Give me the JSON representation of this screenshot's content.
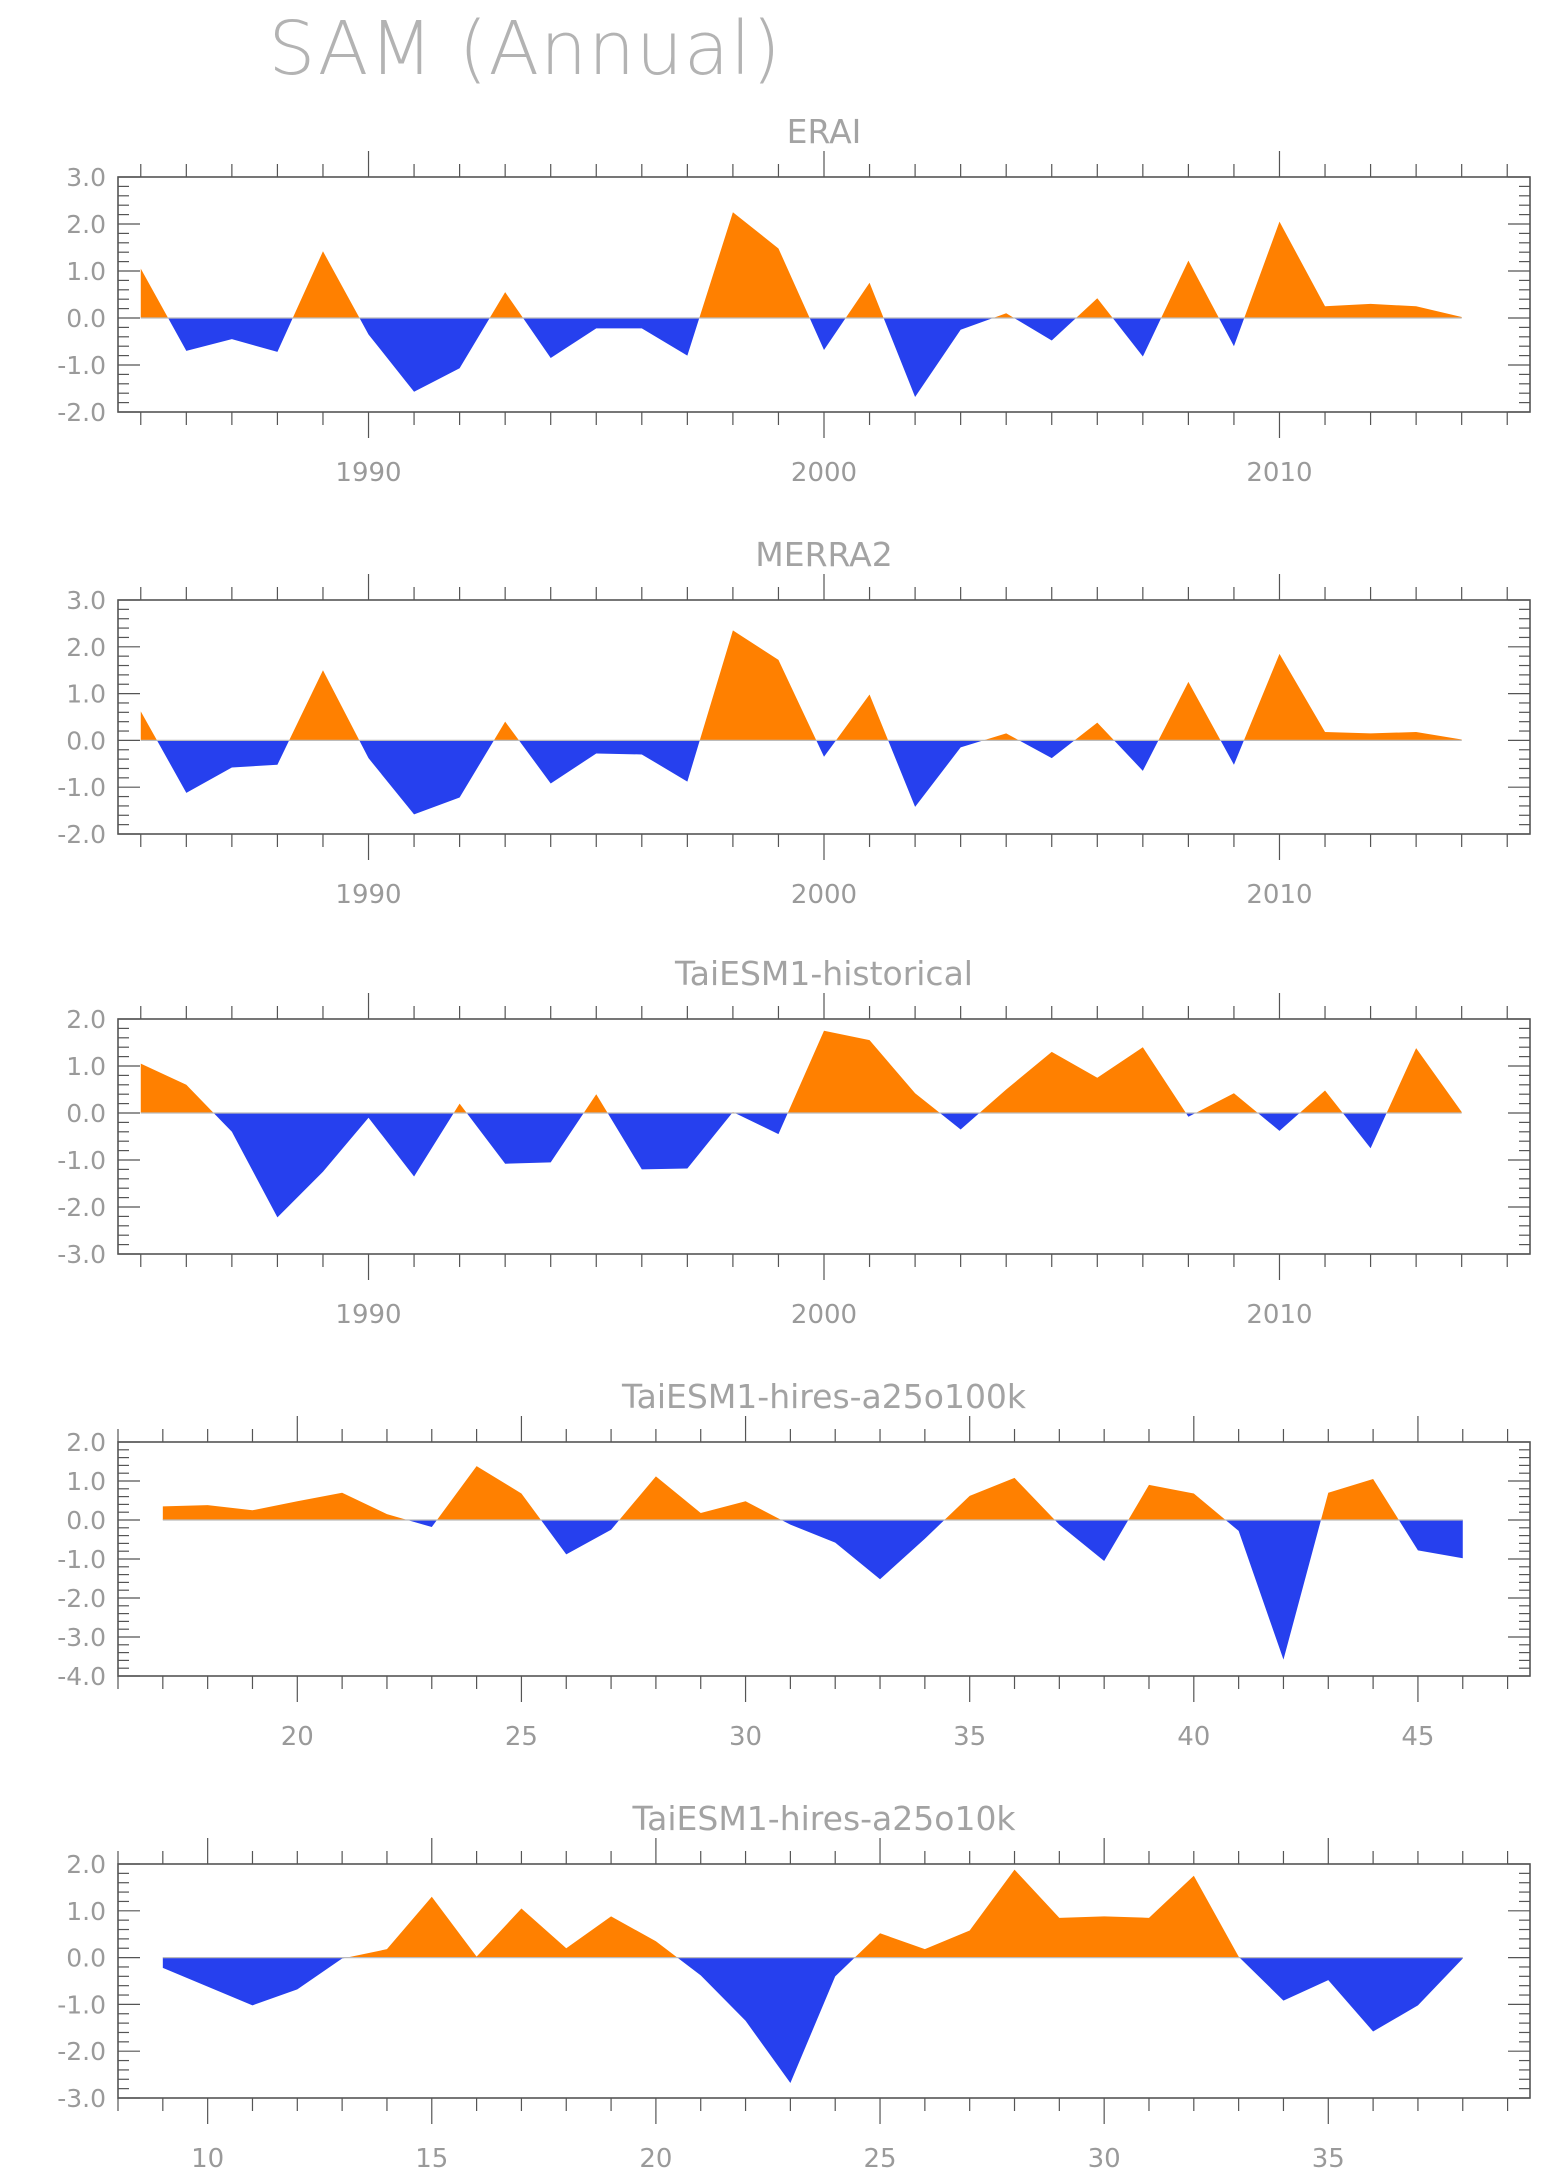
{
  "page_title": "SAM (Annual)",
  "colors": {
    "positive": "#ff8000",
    "negative": "#2640ee",
    "axis": "#555555",
    "text": "#a0a0a0"
  },
  "chart_data": [
    {
      "type": "area",
      "title": "ERAI",
      "x": [
        1985,
        1986,
        1987,
        1988,
        1989,
        1990,
        1991,
        1992,
        1993,
        1994,
        1995,
        1996,
        1997,
        1998,
        1999,
        2000,
        2001,
        2002,
        2003,
        2004,
        2005,
        2006,
        2007,
        2008,
        2009,
        2010,
        2011,
        2012,
        2013,
        2014
      ],
      "values": [
        1.05,
        -0.7,
        -0.45,
        -0.72,
        1.42,
        -0.35,
        -1.57,
        -1.07,
        0.55,
        -0.85,
        -0.22,
        -0.22,
        -0.8,
        2.25,
        1.48,
        -0.68,
        0.75,
        -1.68,
        -0.25,
        0.1,
        -0.48,
        0.42,
        -0.82,
        1.22,
        -0.6,
        2.05,
        0.25,
        0.3,
        0.25,
        0.02
      ],
      "xlim": [
        1984.5,
        2015.5
      ],
      "ylim": [
        -2.0,
        3.0
      ],
      "yticks": [
        -2.0,
        -1.0,
        0.0,
        1.0,
        2.0,
        3.0
      ],
      "ytick_labels": [
        "-2.0",
        "-1.0",
        "0.0",
        "1.0",
        "2.0",
        "3.0"
      ],
      "xticks": [
        1990,
        2000,
        2010
      ],
      "xtick_labels": [
        "1990",
        "2000",
        "2010"
      ],
      "xminor": 1
    },
    {
      "type": "area",
      "title": "MERRA2",
      "x": [
        1985,
        1986,
        1987,
        1988,
        1989,
        1990,
        1991,
        1992,
        1993,
        1994,
        1995,
        1996,
        1997,
        1998,
        1999,
        2000,
        2001,
        2002,
        2003,
        2004,
        2005,
        2006,
        2007,
        2008,
        2009,
        2010,
        2011,
        2012,
        2013,
        2014
      ],
      "values": [
        0.62,
        -1.12,
        -0.58,
        -0.52,
        1.5,
        -0.38,
        -1.58,
        -1.22,
        0.4,
        -0.92,
        -0.28,
        -0.3,
        -0.88,
        2.35,
        1.72,
        -0.35,
        0.98,
        -1.42,
        -0.15,
        0.15,
        -0.38,
        0.38,
        -0.65,
        1.25,
        -0.52,
        1.85,
        0.18,
        0.15,
        0.18,
        0.02
      ],
      "xlim": [
        1984.5,
        2015.5
      ],
      "ylim": [
        -2.0,
        3.0
      ],
      "yticks": [
        -2.0,
        -1.0,
        0.0,
        1.0,
        2.0,
        3.0
      ],
      "ytick_labels": [
        "-2.0",
        "-1.0",
        "0.0",
        "1.0",
        "2.0",
        "3.0"
      ],
      "xticks": [
        1990,
        2000,
        2010
      ],
      "xtick_labels": [
        "1990",
        "2000",
        "2010"
      ],
      "xminor": 1
    },
    {
      "type": "area",
      "title": "TaiESM1-historical",
      "x": [
        1985,
        1986,
        1987,
        1988,
        1989,
        1990,
        1991,
        1992,
        1993,
        1994,
        1995,
        1996,
        1997,
        1998,
        1999,
        2000,
        2001,
        2002,
        2003,
        2004,
        2005,
        2006,
        2007,
        2008,
        2009,
        2010,
        2011,
        2012,
        2013,
        2014
      ],
      "values": [
        1.05,
        0.6,
        -0.4,
        -2.22,
        -1.25,
        -0.1,
        -1.35,
        0.2,
        -1.08,
        -1.05,
        0.4,
        -1.2,
        -1.18,
        0.02,
        -0.45,
        1.75,
        1.55,
        0.42,
        -0.35,
        0.5,
        1.3,
        0.75,
        1.4,
        -0.08,
        0.42,
        -0.38,
        0.48,
        -0.75,
        1.38,
        0.02
      ],
      "xlim": [
        1984.5,
        2015.5
      ],
      "ylim": [
        -3.0,
        2.0
      ],
      "yticks": [
        -3.0,
        -2.0,
        -1.0,
        0.0,
        1.0,
        2.0
      ],
      "ytick_labels": [
        "-3.0",
        "-2.0",
        "-1.0",
        "0.0",
        "1.0",
        "2.0"
      ],
      "xticks": [
        1990,
        2000,
        2010
      ],
      "xtick_labels": [
        "1990",
        "2000",
        "2010"
      ],
      "xminor": 1
    },
    {
      "type": "area",
      "title": "TaiESM1-hires-a25o100k",
      "x": [
        17,
        18,
        19,
        20,
        21,
        22,
        23,
        24,
        25,
        26,
        27,
        28,
        29,
        30,
        31,
        32,
        33,
        34,
        35,
        36,
        37,
        38,
        39,
        40,
        41,
        42,
        43,
        44,
        45,
        46
      ],
      "values": [
        0.35,
        0.38,
        0.25,
        0.48,
        0.7,
        0.15,
        -0.18,
        1.38,
        0.68,
        -0.88,
        -0.25,
        1.12,
        0.18,
        0.48,
        -0.12,
        -0.58,
        -1.52,
        -0.48,
        0.62,
        1.08,
        -0.12,
        -1.05,
        0.9,
        0.68,
        -0.28,
        -3.58,
        0.7,
        1.05,
        -0.78,
        -0.98
      ],
      "xlim": [
        16.0,
        47.5
      ],
      "ylim": [
        -4.0,
        2.0
      ],
      "yticks": [
        -4.0,
        -3.0,
        -2.0,
        -1.0,
        0.0,
        1.0,
        2.0
      ],
      "ytick_labels": [
        "-4.0",
        "-3.0",
        "-2.0",
        "-1.0",
        "0.0",
        "1.0",
        "2.0"
      ],
      "xticks": [
        20,
        25,
        30,
        35,
        40,
        45
      ],
      "xtick_labels": [
        "20",
        "25",
        "30",
        "35",
        "40",
        "45"
      ],
      "xminor": 1
    },
    {
      "type": "area",
      "title": "TaiESM1-hires-a25o10k",
      "x": [
        9,
        10,
        11,
        12,
        13,
        14,
        15,
        16,
        17,
        18,
        19,
        20,
        21,
        22,
        23,
        24,
        25,
        26,
        27,
        28,
        29,
        30,
        31,
        32,
        33,
        34,
        35,
        36,
        37,
        38
      ],
      "values": [
        -0.22,
        -0.62,
        -1.02,
        -0.68,
        -0.02,
        0.18,
        1.3,
        0.02,
        1.05,
        0.2,
        0.88,
        0.35,
        -0.38,
        -1.35,
        -2.68,
        -0.4,
        0.52,
        0.18,
        0.58,
        1.88,
        0.85,
        0.88,
        0.85,
        1.75,
        0.02,
        -0.92,
        -0.48,
        -1.58,
        -1.02,
        -0.02
      ],
      "xlim": [
        8.0,
        39.5
      ],
      "ylim": [
        -3.0,
        2.0
      ],
      "yticks": [
        -3.0,
        -2.0,
        -1.0,
        0.0,
        1.0,
        2.0
      ],
      "ytick_labels": [
        "-3.0",
        "-2.0",
        "-1.0",
        "0.0",
        "1.0",
        "2.0"
      ],
      "xticks": [
        10,
        15,
        20,
        25,
        30,
        35
      ],
      "xtick_labels": [
        "10",
        "15",
        "20",
        "25",
        "30",
        "35"
      ],
      "xminor": 1
    }
  ]
}
